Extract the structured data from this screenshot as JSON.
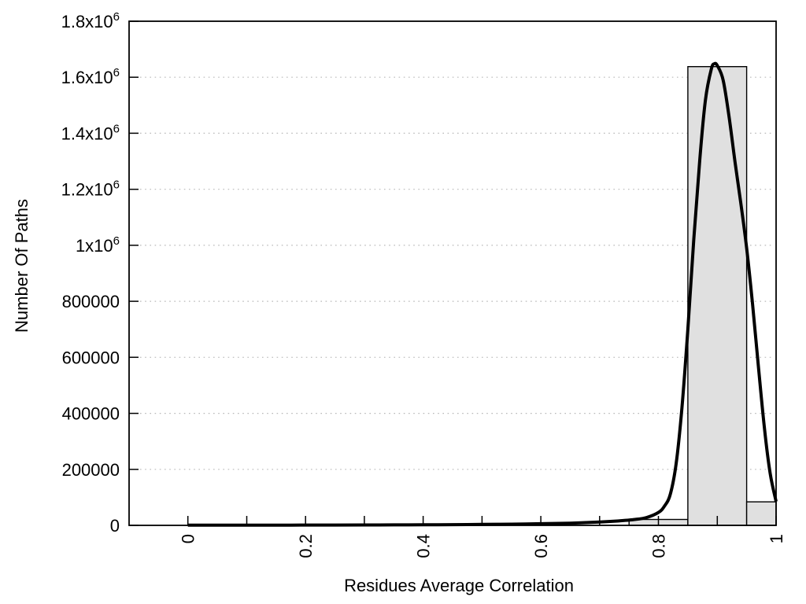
{
  "figure": {
    "background": "#ffffff"
  },
  "chart_data": {
    "type": "histogram_with_fit_line",
    "title": "",
    "xlabel": "Residues Average Correlation",
    "ylabel": "Number Of Paths",
    "xlim": [
      -0.1,
      1.0
    ],
    "ylim": [
      0,
      1800000
    ],
    "x_ticks": [
      0,
      0.1,
      0.2,
      0.3,
      0.4,
      0.5,
      0.6,
      0.7,
      0.8,
      0.9,
      1.0
    ],
    "x_labeled_ticks": [
      0,
      0.2,
      0.4,
      0.6,
      0.8,
      1.0
    ],
    "x_tick_labels": [
      "0",
      "0.2",
      "0.4",
      "0.6",
      "0.8",
      "1"
    ],
    "x_tick_label_rotation_deg": -90,
    "y_ticks": [
      0,
      200000,
      400000,
      600000,
      800000,
      1000000,
      1200000,
      1400000,
      1600000,
      1800000
    ],
    "y_tick_labels": [
      "0",
      "200000",
      "400000",
      "600000",
      "800000",
      "1x10^6",
      "1.2x10^6",
      "1.4x10^6",
      "1.6x10^6",
      "1.8x10^6"
    ],
    "y_gridline_values": [
      200000,
      400000,
      600000,
      800000,
      1000000,
      1200000,
      1400000,
      1600000
    ],
    "grid_style": "horizontal-dotted",
    "legend": "none",
    "colors": {
      "bar_fill": "#e0e0e0",
      "bar_border": "#000000",
      "curve": "#000000",
      "grid": "#b8b8b8",
      "axis": "#000000",
      "text": "#000000"
    },
    "bars": [
      {
        "x0": 0.75,
        "x1": 0.85,
        "value": 21000
      },
      {
        "x0": 0.85,
        "x1": 0.95,
        "value": 1638000
      },
      {
        "x0": 0.95,
        "x1": 1.0,
        "value": 84000
      }
    ],
    "curve_points": [
      [
        0.0,
        800
      ],
      [
        0.05,
        800
      ],
      [
        0.1,
        800
      ],
      [
        0.15,
        900
      ],
      [
        0.2,
        1000
      ],
      [
        0.25,
        1100
      ],
      [
        0.3,
        1300
      ],
      [
        0.35,
        1600
      ],
      [
        0.4,
        2000
      ],
      [
        0.45,
        2600
      ],
      [
        0.5,
        3300
      ],
      [
        0.55,
        4300
      ],
      [
        0.6,
        5800
      ],
      [
        0.65,
        8000
      ],
      [
        0.7,
        12000
      ],
      [
        0.73,
        15500
      ],
      [
        0.76,
        21000
      ],
      [
        0.78,
        28000
      ],
      [
        0.8,
        46000
      ],
      [
        0.81,
        68000
      ],
      [
        0.82,
        110000
      ],
      [
        0.83,
        220000
      ],
      [
        0.84,
        420000
      ],
      [
        0.85,
        700000
      ],
      [
        0.86,
        1020000
      ],
      [
        0.87,
        1300000
      ],
      [
        0.88,
        1520000
      ],
      [
        0.89,
        1630000
      ],
      [
        0.895,
        1648000
      ],
      [
        0.9,
        1642000
      ],
      [
        0.91,
        1590000
      ],
      [
        0.92,
        1460000
      ],
      [
        0.93,
        1300000
      ],
      [
        0.94,
        1150000
      ],
      [
        0.95,
        990000
      ],
      [
        0.96,
        790000
      ],
      [
        0.97,
        565000
      ],
      [
        0.98,
        350000
      ],
      [
        0.99,
        185000
      ],
      [
        1.0,
        85000
      ]
    ]
  }
}
